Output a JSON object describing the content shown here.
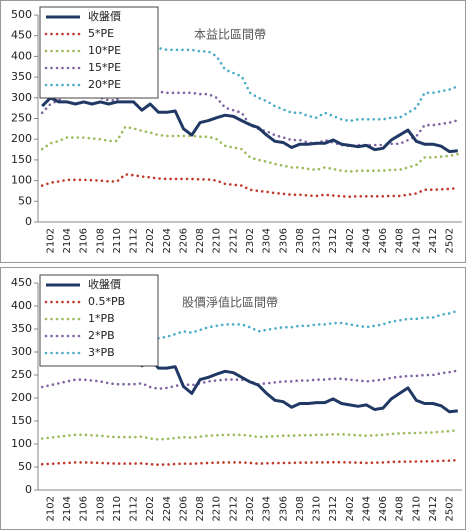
{
  "chart_data": [
    {
      "type": "line",
      "annotation": "本益比區間帶",
      "categories": [
        null,
        "2102",
        null,
        "2104",
        null,
        "2106",
        null,
        "2108",
        null,
        "2110",
        null,
        "2112",
        null,
        "2202",
        null,
        "2204",
        null,
        "2206",
        null,
        "2208",
        null,
        "2210",
        null,
        "2212",
        null,
        "2302",
        null,
        "2304",
        null,
        "2306",
        null,
        "2308",
        null,
        "2310",
        null,
        "2312",
        null,
        "2402",
        null,
        "2404",
        null,
        "2406",
        null,
        "2408",
        null,
        "2410",
        null,
        "2412",
        null,
        "2502",
        null
      ],
      "ylim": [
        0,
        500
      ],
      "yticks": [
        0,
        50,
        100,
        150,
        200,
        250,
        300,
        350,
        400,
        450,
        500
      ],
      "series": [
        {
          "name": "收盤價",
          "color": "#1f3864",
          "values": [
            280,
            300,
            290,
            290,
            285,
            290,
            285,
            290,
            285,
            290,
            290,
            290,
            270,
            285,
            265,
            265,
            268,
            225,
            210,
            240,
            245,
            252,
            258,
            255,
            245,
            235,
            228,
            210,
            195,
            192,
            180,
            188,
            188,
            190,
            190,
            198,
            188,
            185,
            182,
            185,
            175,
            178,
            198,
            210,
            222,
            195,
            188,
            188,
            183,
            170,
            172
          ]
        },
        {
          "name": "5*PE",
          "color": "#c0392b",
          "values": [
            88,
            95,
            98,
            102,
            102,
            102,
            101,
            100,
            98,
            98,
            115,
            113,
            110,
            108,
            105,
            104,
            104,
            104,
            104,
            103,
            103,
            100,
            92,
            90,
            88,
            78,
            75,
            73,
            70,
            68,
            66,
            66,
            64,
            63,
            66,
            64,
            62,
            61,
            62,
            62,
            62,
            62,
            63,
            63,
            66,
            69,
            78,
            78,
            79,
            80,
            82
          ]
        },
        {
          "name": "10*PE",
          "color": "#9bbb59",
          "values": [
            176,
            190,
            196,
            204,
            204,
            204,
            202,
            200,
            196,
            196,
            230,
            226,
            220,
            216,
            210,
            208,
            208,
            208,
            208,
            206,
            206,
            200,
            184,
            180,
            176,
            156,
            150,
            146,
            140,
            136,
            132,
            132,
            128,
            126,
            132,
            128,
            124,
            122,
            124,
            124,
            124,
            124,
            126,
            126,
            132,
            138,
            156,
            156,
            158,
            160,
            164
          ]
        },
        {
          "name": "15*PE",
          "color": "#8064a2",
          "values": [
            264,
            285,
            294,
            306,
            306,
            306,
            303,
            300,
            294,
            294,
            345,
            339,
            330,
            324,
            315,
            312,
            312,
            312,
            312,
            309,
            309,
            300,
            276,
            270,
            264,
            234,
            225,
            219,
            210,
            204,
            198,
            198,
            192,
            189,
            198,
            192,
            186,
            183,
            186,
            186,
            186,
            186,
            189,
            189,
            198,
            207,
            234,
            234,
            237,
            240,
            246
          ]
        },
        {
          "name": "20*PE",
          "color": "#4bacc6",
          "values": [
            352,
            380,
            392,
            408,
            408,
            408,
            404,
            400,
            392,
            392,
            460,
            452,
            440,
            432,
            420,
            416,
            416,
            416,
            416,
            412,
            412,
            400,
            368,
            360,
            352,
            312,
            300,
            292,
            280,
            272,
            264,
            264,
            256,
            252,
            264,
            256,
            248,
            244,
            248,
            248,
            248,
            248,
            252,
            252,
            264,
            276,
            312,
            312,
            316,
            320,
            328
          ]
        }
      ]
    },
    {
      "type": "line",
      "annotation": "股價淨值比區間帶",
      "categories": [
        null,
        "2102",
        null,
        "2104",
        null,
        "2106",
        null,
        "2108",
        null,
        "2110",
        null,
        "2112",
        null,
        "2202",
        null,
        "2204",
        null,
        "2206",
        null,
        "2208",
        null,
        "2210",
        null,
        "2212",
        null,
        "2302",
        null,
        "2304",
        null,
        "2306",
        null,
        "2308",
        null,
        "2310",
        null,
        "2312",
        null,
        "2402",
        null,
        "2404",
        null,
        "2406",
        null,
        "2408",
        null,
        "2410",
        null,
        "2412",
        null,
        "2502",
        null
      ],
      "ylim": [
        0,
        450
      ],
      "yticks": [
        0,
        50,
        100,
        150,
        200,
        250,
        300,
        350,
        400,
        450
      ],
      "series": [
        {
          "name": "收盤價",
          "color": "#1f3864",
          "values": [
            280,
            300,
            290,
            290,
            285,
            290,
            285,
            290,
            285,
            290,
            290,
            290,
            270,
            285,
            265,
            265,
            268,
            225,
            210,
            240,
            245,
            252,
            258,
            255,
            245,
            235,
            228,
            210,
            195,
            192,
            180,
            188,
            188,
            190,
            190,
            198,
            188,
            185,
            182,
            185,
            175,
            178,
            198,
            210,
            222,
            195,
            188,
            188,
            183,
            170,
            172
          ]
        },
        {
          "name": "0.5*PB",
          "color": "#c0392b",
          "values": [
            56,
            57,
            58,
            59,
            60,
            60,
            59.5,
            59,
            58,
            57.5,
            57.5,
            57.5,
            58,
            56,
            55,
            55.5,
            56.5,
            57.5,
            57,
            58,
            59,
            59.5,
            60,
            60,
            60,
            59,
            57.5,
            58,
            58.5,
            59,
            59,
            59.5,
            59.5,
            60,
            60,
            60.5,
            60.5,
            60,
            59.5,
            59,
            59.5,
            60,
            61,
            61.5,
            62,
            62,
            62.5,
            62.5,
            63.5,
            64,
            65
          ]
        },
        {
          "name": "1*PB",
          "color": "#9bbb59",
          "values": [
            112,
            114,
            116,
            118,
            120,
            120,
            119,
            118,
            116,
            115,
            115,
            115,
            116,
            112,
            110,
            111,
            113,
            115,
            114,
            116,
            118,
            119,
            120,
            120,
            120,
            118,
            115,
            116,
            117,
            118,
            118,
            119,
            119,
            120,
            120,
            121,
            121,
            120,
            119,
            118,
            119,
            120,
            122,
            123,
            124,
            124,
            125,
            125,
            127,
            128,
            130
          ]
        },
        {
          "name": "2*PB",
          "color": "#8064a2",
          "values": [
            224,
            228,
            232,
            236,
            240,
            240,
            238,
            236,
            232,
            230,
            230,
            230,
            232,
            224,
            220,
            222,
            226,
            230,
            228,
            232,
            236,
            238,
            240,
            240,
            240,
            236,
            230,
            232,
            234,
            236,
            236,
            238,
            238,
            240,
            240,
            242,
            242,
            240,
            238,
            236,
            238,
            240,
            244,
            246,
            248,
            248,
            250,
            250,
            254,
            256,
            260
          ]
        },
        {
          "name": "3*PB",
          "color": "#4bacc6",
          "values": [
            336,
            342,
            348,
            354,
            360,
            360,
            357,
            354,
            348,
            345,
            345,
            345,
            348,
            336,
            330,
            333,
            339,
            345,
            342,
            348,
            354,
            357,
            360,
            360,
            360,
            354,
            345,
            348,
            351,
            354,
            354,
            357,
            357,
            360,
            360,
            363,
            363,
            360,
            357,
            354,
            357,
            360,
            366,
            369,
            372,
            372,
            375,
            375,
            381,
            384,
            390
          ]
        }
      ]
    }
  ]
}
